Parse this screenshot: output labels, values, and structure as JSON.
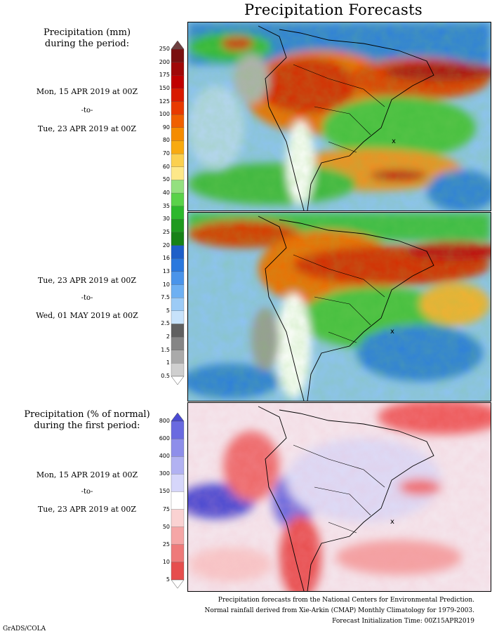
{
  "title": "Precipitation Forecasts",
  "amount_legend": {
    "heading_line1": "Precipitation (mm)",
    "heading_line2": "during the period:",
    "ticks": [
      "250",
      "200",
      "175",
      "150",
      "125",
      "100",
      "90",
      "80",
      "70",
      "60",
      "50",
      "40",
      "35",
      "30",
      "25",
      "20",
      "16",
      "13",
      "10",
      "7.5",
      "5",
      "2.5",
      "2",
      "1.5",
      "1",
      "0.5"
    ],
    "colors": [
      "#6e4040",
      "#7a1010",
      "#a00808",
      "#c00000",
      "#d81a00",
      "#e83a00",
      "#f06000",
      "#f58c00",
      "#f8aa10",
      "#fbd050",
      "#fde88a",
      "#94e080",
      "#5ad24a",
      "#2cb82c",
      "#1f9a1f",
      "#178217",
      "#1e5fc8",
      "#2a78de",
      "#4a94ea",
      "#6eb0f2",
      "#9ccbf6",
      "#c7e2fa",
      "#606060",
      "#858585",
      "#aaaaaa",
      "#cfcfcf"
    ]
  },
  "period1": {
    "start": "Mon, 15 APR 2019 at 00Z",
    "sep": "-to-",
    "end": "Tue, 23 APR 2019 at 00Z"
  },
  "period2": {
    "start": "Tue, 23 APR 2019 at 00Z",
    "sep": "-to-",
    "end": "Wed, 01 MAY 2019 at 00Z"
  },
  "percent_legend": {
    "heading_line1": "Precipitation (% of normal)",
    "heading_line2": "during the first period:",
    "ticks": [
      "800",
      "600",
      "400",
      "300",
      "150",
      "75",
      "50",
      "25",
      "10",
      "5"
    ],
    "colors": [
      "#4a4ad2",
      "#6a6ae0",
      "#8e8eea",
      "#b2b2f2",
      "#d6d6fa",
      "#ffffff",
      "#fad2d2",
      "#f5a6a6",
      "#ee7a7a",
      "#e64e4e",
      "#d82828"
    ]
  },
  "period3": {
    "start": "Mon, 15 APR 2019 at 00Z",
    "sep": "-to-",
    "end": "Tue, 23 APR 2019 at 00Z"
  },
  "footer": {
    "line1": "Precipitation forecasts from the National Centers for Environmental Prediction.",
    "line2": "Normal rainfall derived from Xie-Arkin (CMAP) Monthly Climatology for 1979-2003.",
    "line3": "Forecast Initialization Time: 00Z15APR2019"
  },
  "credit": "GrADS/COLA",
  "map_city_marker": "x"
}
